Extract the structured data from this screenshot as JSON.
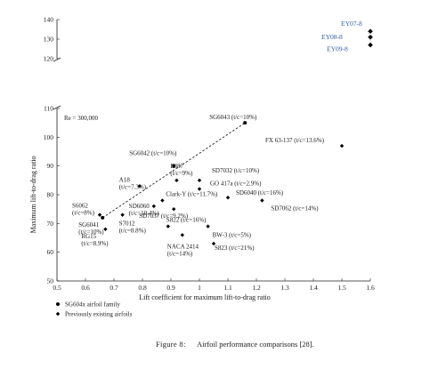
{
  "chart_data": {
    "type": "scatter",
    "xlabel": "Lift coefficient for maximum lift-to-drag ratio",
    "ylabel": "Maximum lift-to-drag ratio",
    "xlim": [
      0.5,
      1.6
    ],
    "ylim": [
      50,
      140
    ],
    "xticks": [
      "0.5",
      "0.6",
      "0.7",
      "0.8",
      "0.9",
      "1",
      "1.1",
      "1.2",
      "1.3",
      "1.4",
      "1.5",
      "1.6"
    ],
    "yticks_lower": [
      "50",
      "60",
      "70",
      "80",
      "90",
      "100",
      "110"
    ],
    "yticks_upper": [
      "120",
      "130",
      "140"
    ],
    "annotation": "Re = 300,000",
    "grid": false,
    "legend_position": "bottom-left",
    "legend": [
      {
        "name": "SG604x airfoil family",
        "marker": "circle"
      },
      {
        "name": "Previously existing airfoils",
        "marker": "diamond"
      }
    ],
    "series": [
      {
        "name": "SG604x airfoil family",
        "marker": "circle",
        "trend_line": true,
        "points": [
          {
            "x": 0.66,
            "y": 72,
            "label": "SG6041 (t/c=10%)"
          },
          {
            "x": 0.91,
            "y": 90,
            "label": "SG6042 (t/c=10%)"
          },
          {
            "x": 1.16,
            "y": 105,
            "label": "SG6043 (t/c=10%)"
          }
        ]
      },
      {
        "name": "Previously existing airfoils",
        "marker": "diamond",
        "points": [
          {
            "x": 0.65,
            "y": 73,
            "label": "S6062 (t/c=8%)"
          },
          {
            "x": 0.67,
            "y": 68,
            "label": "RG15 (t/c=8.9%)"
          },
          {
            "x": 0.79,
            "y": 83,
            "label": "A18 (t/c=7.3%)"
          },
          {
            "x": 0.92,
            "y": 85,
            "label": "E387 (t/c=9%)"
          },
          {
            "x": 1.0,
            "y": 85,
            "label": "SD7032 (t/c=10%)"
          },
          {
            "x": 1.0,
            "y": 82,
            "label": "GO 417a (t/c=2.9%)"
          },
          {
            "x": 0.87,
            "y": 78,
            "label": "Clark-Y (t/c=11.7%)"
          },
          {
            "x": 0.84,
            "y": 76,
            "label": "SD6060 (t/c=10.4%)"
          },
          {
            "x": 0.91,
            "y": 75,
            "label": "SD7037 (t/c=9.2%)"
          },
          {
            "x": 1.1,
            "y": 79,
            "label": "SD6040 (t/c=16%)"
          },
          {
            "x": 1.22,
            "y": 78,
            "label": "SD7062 (t/c=14%)"
          },
          {
            "x": 0.73,
            "y": 73,
            "label": "S7012 (t/c=8.8%)"
          },
          {
            "x": 0.89,
            "y": 69,
            "label": "S822 (t/c=16%)"
          },
          {
            "x": 1.03,
            "y": 69,
            "label": "BW-3 (t/c=5%)"
          },
          {
            "x": 0.94,
            "y": 66,
            "label": "NACA 2414 (t/c=14%)"
          },
          {
            "x": 1.05,
            "y": 63,
            "label": "S823 (t/c=21%)"
          },
          {
            "x": 1.5,
            "y": 97,
            "label": "FX 63-137 (t/c=13.6%)"
          },
          {
            "x": 1.6,
            "y": 134,
            "label": "EY07-8"
          },
          {
            "x": 1.6,
            "y": 131,
            "label": "EY08-8"
          },
          {
            "x": 1.6,
            "y": 127,
            "label": "EY09-8"
          }
        ]
      }
    ]
  },
  "caption": {
    "figure": "Figure 8:",
    "text": "Airfoil performance comparisons [28]."
  }
}
